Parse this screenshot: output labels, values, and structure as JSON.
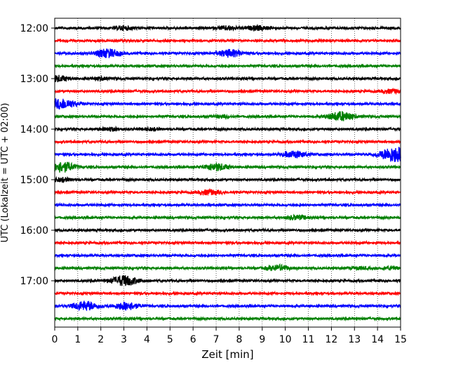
{
  "chart_data": {
    "type": "line",
    "xlabel": "Zeit  [min]",
    "ylabel": "UTC (Lokalzeit = UTC + 02:00)",
    "xlim": [
      0,
      15
    ],
    "x_ticks": [
      0,
      1,
      2,
      3,
      4,
      5,
      6,
      7,
      8,
      9,
      10,
      11,
      12,
      13,
      14,
      15
    ],
    "grid": "vertical-dotted",
    "y_tick_labels": [
      "12:00",
      "13:00",
      "14:00",
      "15:00",
      "16:00",
      "17:00"
    ],
    "trace_interval_minutes": 15,
    "trace_count": 24,
    "trace_colors": [
      "#000000",
      "#ff0000",
      "#0000ff",
      "#008000"
    ],
    "traces": [
      {
        "start": "12:00",
        "events": [
          {
            "t": 3.0,
            "amp": 0.3
          },
          {
            "t": 7.5,
            "amp": 0.3
          },
          {
            "t": 8.8,
            "amp": 0.35
          }
        ]
      },
      {
        "start": "12:15",
        "events": []
      },
      {
        "start": "12:30",
        "events": [
          {
            "t": 2.3,
            "amp": 0.7
          },
          {
            "t": 7.6,
            "amp": 0.6
          }
        ]
      },
      {
        "start": "12:45",
        "events": []
      },
      {
        "start": "13:00",
        "events": [
          {
            "t": 0.1,
            "amp": 0.5
          },
          {
            "t": 2.0,
            "amp": 0.2
          }
        ]
      },
      {
        "start": "13:15",
        "events": [
          {
            "t": 14.6,
            "amp": 0.3
          }
        ]
      },
      {
        "start": "13:30",
        "events": [
          {
            "t": 0.3,
            "amp": 0.85
          }
        ]
      },
      {
        "start": "13:45",
        "events": [
          {
            "t": 7.2,
            "amp": 0.2
          },
          {
            "t": 12.4,
            "amp": 0.75
          }
        ]
      },
      {
        "start": "14:00",
        "events": [
          {
            "t": 2.4,
            "amp": 0.25
          },
          {
            "t": 4.2,
            "amp": 0.2
          }
        ]
      },
      {
        "start": "14:15",
        "events": []
      },
      {
        "start": "14:30",
        "events": [
          {
            "t": 10.4,
            "amp": 0.55
          },
          {
            "t": 14.8,
            "amp": 1.3
          }
        ]
      },
      {
        "start": "14:45",
        "events": [
          {
            "t": 0.3,
            "amp": 0.85
          },
          {
            "t": 7.0,
            "amp": 0.6
          }
        ]
      },
      {
        "start": "15:00",
        "events": [
          {
            "t": 0.3,
            "amp": 0.3
          }
        ]
      },
      {
        "start": "15:15",
        "events": [
          {
            "t": 6.7,
            "amp": 0.4
          }
        ]
      },
      {
        "start": "15:30",
        "events": []
      },
      {
        "start": "15:45",
        "events": [
          {
            "t": 10.5,
            "amp": 0.35
          }
        ]
      },
      {
        "start": "16:00",
        "events": []
      },
      {
        "start": "16:15",
        "events": []
      },
      {
        "start": "16:30",
        "events": []
      },
      {
        "start": "16:45",
        "events": [
          {
            "t": 9.7,
            "amp": 0.45
          },
          {
            "t": 13.2,
            "amp": 0.2
          },
          {
            "t": 14.6,
            "amp": 0.2
          }
        ]
      },
      {
        "start": "17:00",
        "events": [
          {
            "t": 3.0,
            "amp": 0.85
          }
        ]
      },
      {
        "start": "17:15",
        "events": []
      },
      {
        "start": "17:30",
        "events": [
          {
            "t": 1.3,
            "amp": 0.75
          },
          {
            "t": 3.1,
            "amp": 0.65
          }
        ]
      },
      {
        "start": "17:45",
        "events": []
      }
    ]
  }
}
